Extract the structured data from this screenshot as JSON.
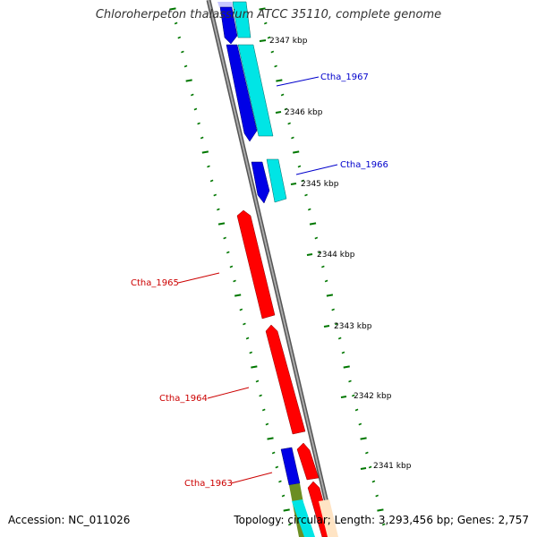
{
  "title": "Chloroherpeton thalassium ATCC 35110, complete genome",
  "footer": {
    "accession": "Accession: NC_011026",
    "stats": "Topology: circular; Length: 3,293,456 bp; Genes: 2,757"
  },
  "colors": {
    "backbone": "#808080",
    "forward_cds": "#0000e6",
    "forward_cds_alt": "#00e5e5",
    "reverse_cds": "#ff0000",
    "ruler_ticks": "#007700",
    "forward_label": "#0000cc",
    "reverse_label": "#cc0000"
  },
  "kbp_ticks": [
    {
      "label": "2347 kbp"
    },
    {
      "label": "2346 kbp"
    },
    {
      "label": "2345 kbp"
    },
    {
      "label": "2344 kbp"
    },
    {
      "label": "2343 kbp"
    },
    {
      "label": "2342 kbp"
    },
    {
      "label": "2341 kbp"
    }
  ],
  "gene_labels": [
    {
      "name": "Ctha_1967",
      "strand": "forward"
    },
    {
      "name": "Ctha_1966",
      "strand": "forward"
    },
    {
      "name": "Ctha_1965",
      "strand": "reverse"
    },
    {
      "name": "Ctha_1964",
      "strand": "reverse"
    },
    {
      "name": "Ctha_1963",
      "strand": "reverse"
    }
  ]
}
